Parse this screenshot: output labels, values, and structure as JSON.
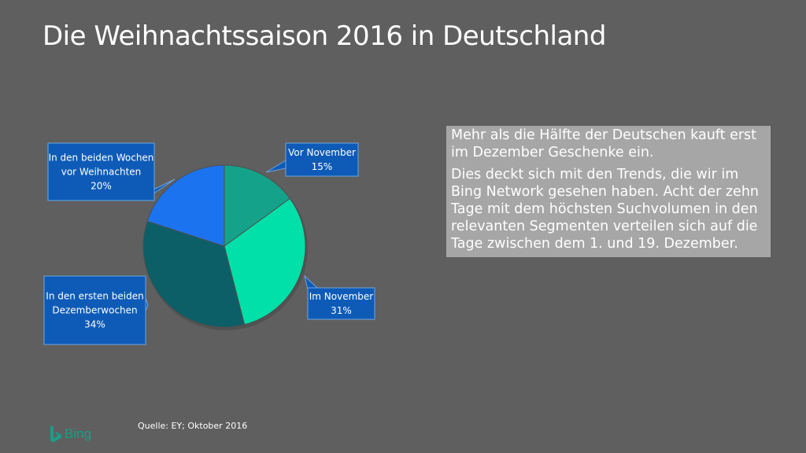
{
  "page": {
    "title": "Die Weihnachtssaison 2016 in Deutschland"
  },
  "chart_data": {
    "type": "pie",
    "slices": [
      {
        "label": "Vor November",
        "value": 15,
        "value_label": "15%",
        "color": "#14a38a"
      },
      {
        "label": "Im November",
        "value": 31,
        "value_label": "31%",
        "color": "#00e0a8"
      },
      {
        "label": "In den ersten beiden Dezemberwochen",
        "label_lines": [
          "In den ersten beiden",
          "Dezemberwochen"
        ],
        "value": 34,
        "value_label": "34%",
        "color": "#0c5f66"
      },
      {
        "label": "In den beiden Wochen vor Weihnachten",
        "label_lines": [
          "In den beiden Wochen",
          "vor Weihnachten"
        ],
        "value": 20,
        "value_label": "20%",
        "color": "#1b73f0"
      }
    ]
  },
  "callout_colors": {
    "fill": "#0e5bb7",
    "stroke": "#6fa4de"
  },
  "textbox": {
    "paragraph1": "Mehr als die Hälfte der Deutschen kauft erst im Dezember Geschenke ein.",
    "paragraph2": "Dies deckt sich mit den Trends, die wir im Bing Network gesehen haben. Acht der zehn Tage mit dem höchsten Suchvolumen in den relevanten Segmenten verteilen sich auf die Tage zwischen dem 1. und 19. Dezember."
  },
  "source": "Quelle: EY; Oktober 2016",
  "logo": {
    "text": "Bing",
    "icon": "bing-logo-icon",
    "color": "#1e9b86"
  }
}
